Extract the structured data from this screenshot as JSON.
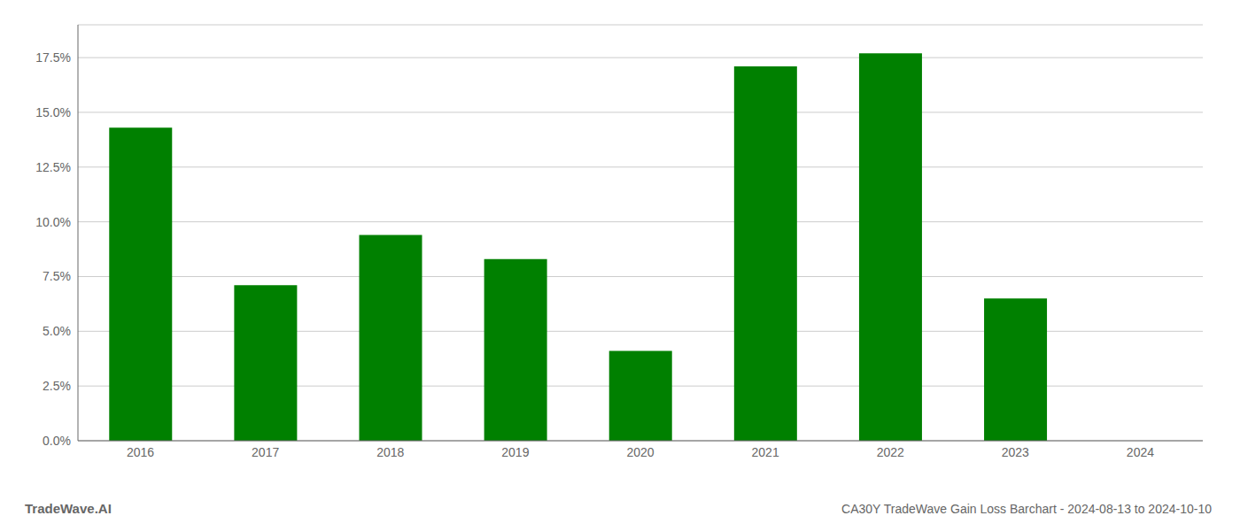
{
  "chart_data": {
    "type": "bar",
    "title": "CA30Y TradeWave Gain Loss Barchart - 2024-08-13 to 2024-10-10",
    "annotations": [
      "TradeWave.AI"
    ],
    "categories": [
      "2016",
      "2017",
      "2018",
      "2019",
      "2020",
      "2021",
      "2022",
      "2023",
      "2024"
    ],
    "values": [
      0.143,
      0.071,
      0.094,
      0.083,
      0.041,
      0.171,
      0.177,
      0.065,
      0.0
    ],
    "color": "#008000",
    "ylim": [
      0,
      0.19
    ],
    "yticks": [
      {
        "value": 0.0,
        "label": "0.0%"
      },
      {
        "value": 0.025,
        "label": "2.5%"
      },
      {
        "value": 0.05,
        "label": "5.0%"
      },
      {
        "value": 0.075,
        "label": "7.5%"
      },
      {
        "value": 0.1,
        "label": "10.0%"
      },
      {
        "value": 0.125,
        "label": "12.5%"
      },
      {
        "value": 0.15,
        "label": "15.0%"
      },
      {
        "value": 0.175,
        "label": "17.5%"
      }
    ],
    "grid": true
  }
}
